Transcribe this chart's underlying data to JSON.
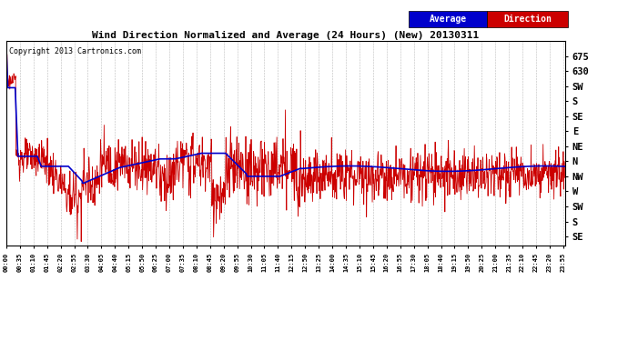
{
  "title": "Wind Direction Normalized and Average (24 Hours) (New) 20130311",
  "copyright": "Copyright 2013 Cartronics.com",
  "background_color": "#ffffff",
  "grid_color": "#bbbbbb",
  "legend_labels": [
    "Average",
    "Direction"
  ],
  "legend_bg_colors": [
    "#0000cc",
    "#cc0000"
  ],
  "ytick_values": [
    675,
    630,
    585,
    540,
    495,
    450,
    405,
    360,
    315,
    270,
    225,
    180,
    135
  ],
  "ytick_labels": [
    "675",
    "630",
    "SW",
    "S",
    "SE",
    "E",
    "NE",
    "N",
    "NW",
    "W",
    "SW",
    "S",
    "SE"
  ],
  "ylim": [
    108,
    720
  ],
  "xlim_start": 0,
  "xlim_end": 1440,
  "avg_series_color": "#0000cc",
  "dir_series_color": "#cc0000",
  "avg_linewidth": 1.2,
  "dir_linewidth": 0.6
}
